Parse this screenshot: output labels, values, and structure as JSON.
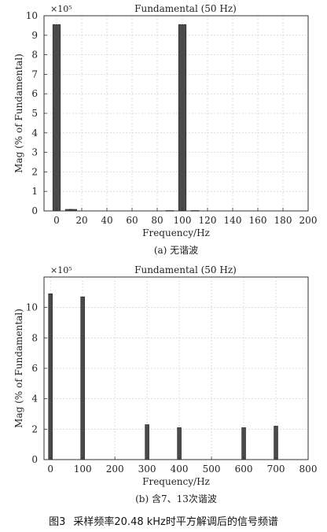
{
  "figure": {
    "label": "图3",
    "caption": "采样频率20.48 kHz时平方解调后的信号频谱"
  },
  "colors": {
    "bar": "#4a4a4a",
    "grid": "#d4d4d4",
    "axis": "#333333"
  },
  "chart_data": [
    {
      "type": "bar",
      "title": "Fundamental (50 Hz)",
      "multiplier": "×10⁵",
      "xlabel": "Frequency/Hz",
      "ylabel": "Mag (% of Fundamental)",
      "subcaption": "(a) 无谐波",
      "xlim": [
        -10,
        200
      ],
      "ylim": [
        0,
        10
      ],
      "xticks": [
        0,
        20,
        40,
        60,
        80,
        100,
        120,
        140,
        160,
        180,
        200
      ],
      "yticks": [
        0,
        1,
        2,
        3,
        4,
        5,
        6,
        7,
        8,
        9,
        10
      ],
      "grid": true,
      "bar_width": 6,
      "x": [
        0,
        10,
        13,
        90,
        100,
        110
      ],
      "values": [
        9.55,
        0.08,
        0.08,
        0.02,
        9.55,
        0.02
      ]
    },
    {
      "type": "bar",
      "title": "Fundamental (50 Hz)",
      "multiplier": "×10⁵",
      "xlabel": "Frequency/Hz",
      "ylabel": "Mag (% of Fundamental)",
      "subcaption": "(b) 含7、13次谐波",
      "xlim": [
        -20,
        800
      ],
      "ylim": [
        0,
        12
      ],
      "xticks": [
        0,
        100,
        200,
        300,
        400,
        500,
        600,
        700,
        800
      ],
      "yticks": [
        0,
        2,
        4,
        6,
        8,
        10
      ],
      "grid": true,
      "bar_width": 12,
      "x": [
        0,
        100,
        300,
        400,
        600,
        700
      ],
      "values": [
        10.9,
        10.7,
        2.3,
        2.1,
        2.1,
        2.2
      ]
    }
  ]
}
